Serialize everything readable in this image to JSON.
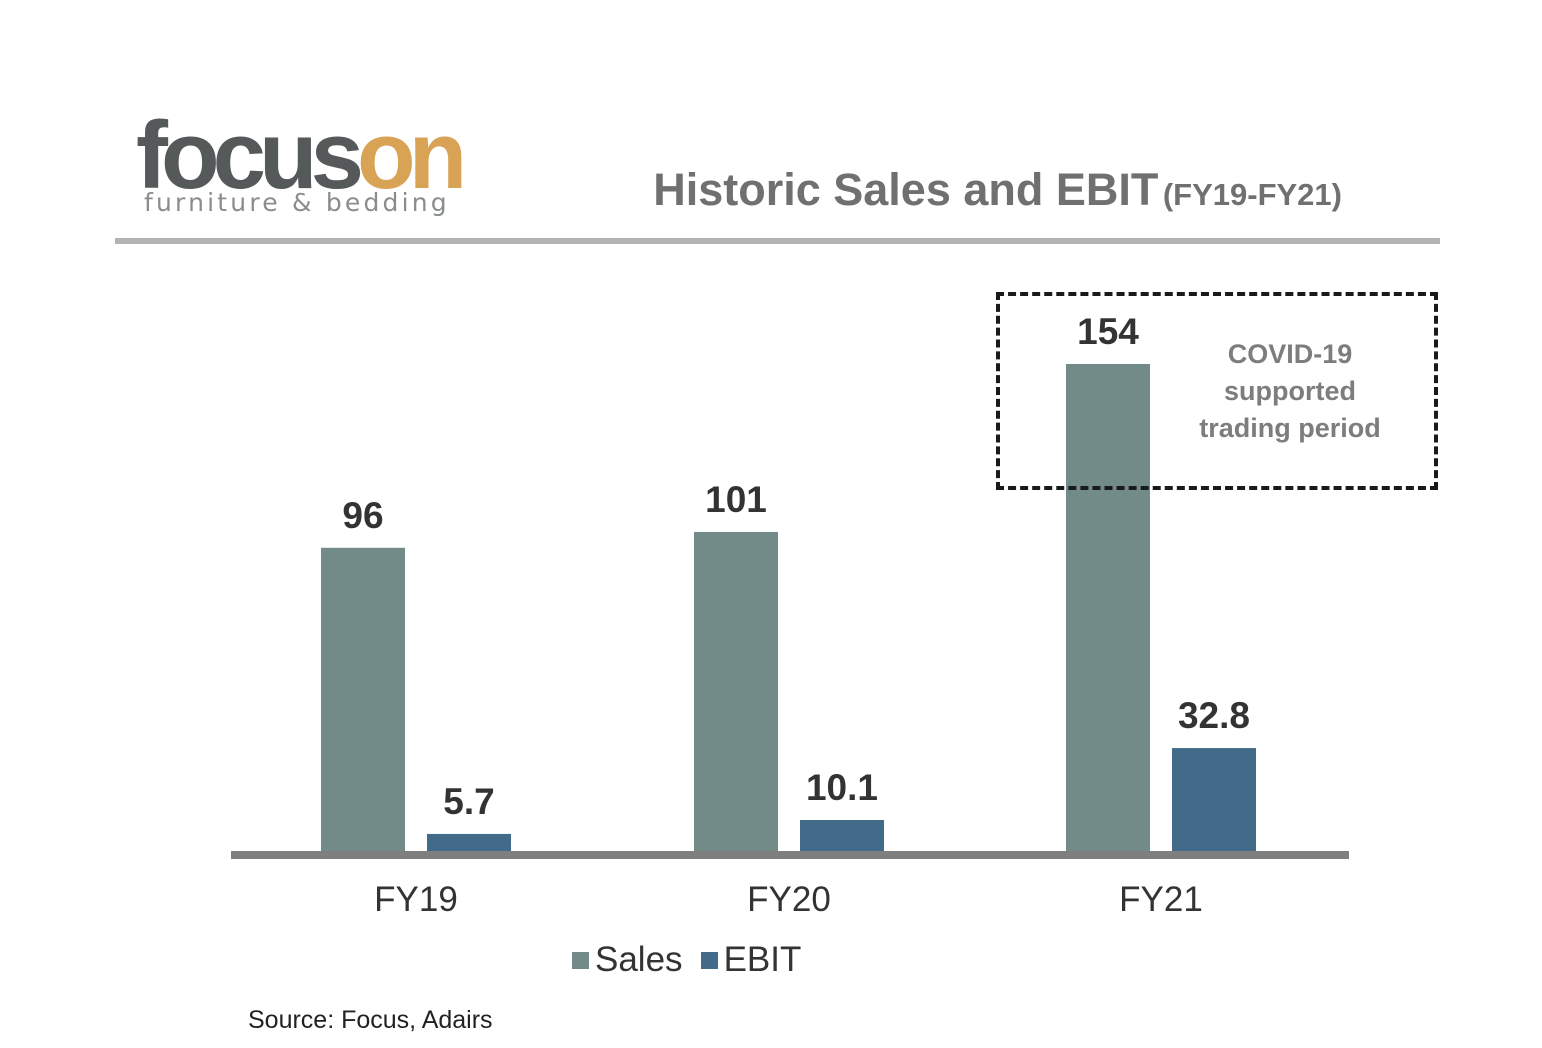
{
  "brand": {
    "word_part1": "focus",
    "word_part2": "on",
    "tagline": "furniture & bedding",
    "colors": {
      "dark": "#55595a",
      "accent": "#d9a356"
    }
  },
  "header": {
    "title": "Historic Sales and EBIT",
    "subtitle": "(FY19-FY21)"
  },
  "annotation": {
    "lines": [
      "COVID-19",
      "supported",
      "trading period"
    ]
  },
  "legend": {
    "sales_label": "Sales",
    "ebit_label": "EBIT"
  },
  "source": "Source: Focus, Adairs",
  "chart_data": {
    "type": "bar",
    "title": "Historic Sales and EBIT (FY19-FY21)",
    "categories": [
      "FY19",
      "FY20",
      "FY21"
    ],
    "series": [
      {
        "name": "Sales",
        "values": [
          96,
          101,
          154
        ],
        "labels": [
          "96",
          "101",
          "154"
        ],
        "color": "#738b88"
      },
      {
        "name": "EBIT",
        "values": [
          5.7,
          10.1,
          32.8
        ],
        "labels": [
          "5.7",
          "10.1",
          "32.8"
        ],
        "color": "#416b88"
      }
    ],
    "xlabel": "",
    "ylabel": "",
    "ylim": [
      0,
      154
    ],
    "grid": false,
    "legend": "bottom-center",
    "highlight": {
      "category": "FY21",
      "note": "COVID-19 supported trading period"
    }
  }
}
